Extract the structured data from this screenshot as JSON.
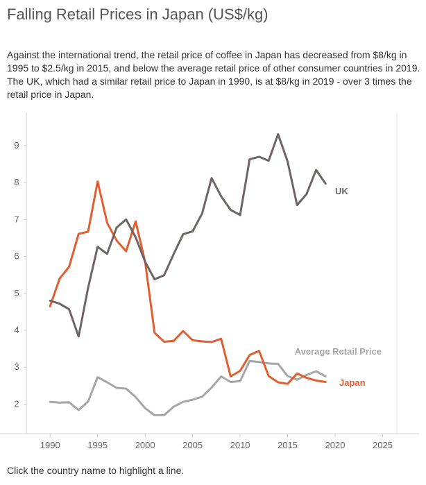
{
  "header": {
    "title": "Falling Retail Prices in Japan (US$/kg)",
    "description": "Against the international trend, the retail price of coffee in Japan has decreased from $8/kg in 1995 to $2.5/kg in 2015, and below the average retail price of other consumer countries in 2019. The UK, which had a similar retail price to Japan in 1990, is at $8/kg in 2019 - over 3 times the retail price in Japan."
  },
  "footer": {
    "note": "Click the country name to highlight a line."
  },
  "chart_data": {
    "type": "line",
    "title": "Falling Retail Prices in Japan (US$/kg)",
    "xlabel": "",
    "ylabel": "",
    "xlim": [
      1987.5,
      2026.5
    ],
    "ylim": [
      1.2,
      9.9
    ],
    "x_ticks": [
      1990,
      1995,
      2000,
      2005,
      2010,
      2015,
      2020,
      2025
    ],
    "y_ticks": [
      2,
      3,
      4,
      5,
      6,
      7,
      8,
      9
    ],
    "grid": false,
    "x": [
      1990,
      1991,
      1992,
      1993,
      1994,
      1995,
      1996,
      1997,
      1998,
      1999,
      2000,
      2001,
      2002,
      2003,
      2004,
      2005,
      2006,
      2007,
      2008,
      2009,
      2010,
      2011,
      2012,
      2013,
      2014,
      2015,
      2016,
      2017,
      2018,
      2019
    ],
    "series": [
      {
        "name": "UK",
        "color": "#6e6464",
        "values": [
          4.8,
          4.72,
          4.57,
          3.83,
          5.15,
          6.26,
          6.07,
          6.78,
          7.0,
          6.52,
          5.85,
          5.38,
          5.49,
          6.06,
          6.6,
          6.68,
          7.16,
          8.12,
          7.63,
          7.26,
          7.12,
          8.63,
          8.7,
          8.59,
          9.31,
          8.57,
          7.39,
          7.69,
          8.34,
          7.97
        ]
      },
      {
        "name": "Japan",
        "color": "#e25e30",
        "values": [
          4.65,
          5.4,
          5.72,
          6.61,
          6.67,
          8.03,
          6.91,
          6.43,
          6.14,
          6.95,
          5.85,
          3.93,
          3.69,
          3.71,
          3.98,
          3.73,
          3.7,
          3.68,
          3.77,
          2.75,
          2.9,
          3.33,
          3.44,
          2.76,
          2.59,
          2.55,
          2.83,
          2.71,
          2.64,
          2.6
        ]
      },
      {
        "name": "Average Retail Price",
        "color": "#a6a6a6",
        "values": [
          2.06,
          2.04,
          2.05,
          1.84,
          2.07,
          2.73,
          2.59,
          2.44,
          2.42,
          2.19,
          1.89,
          1.7,
          1.7,
          1.93,
          2.06,
          2.12,
          2.2,
          2.45,
          2.75,
          2.6,
          2.62,
          3.17,
          3.14,
          3.1,
          3.09,
          2.76,
          2.66,
          2.79,
          2.89,
          2.75
        ]
      }
    ]
  }
}
